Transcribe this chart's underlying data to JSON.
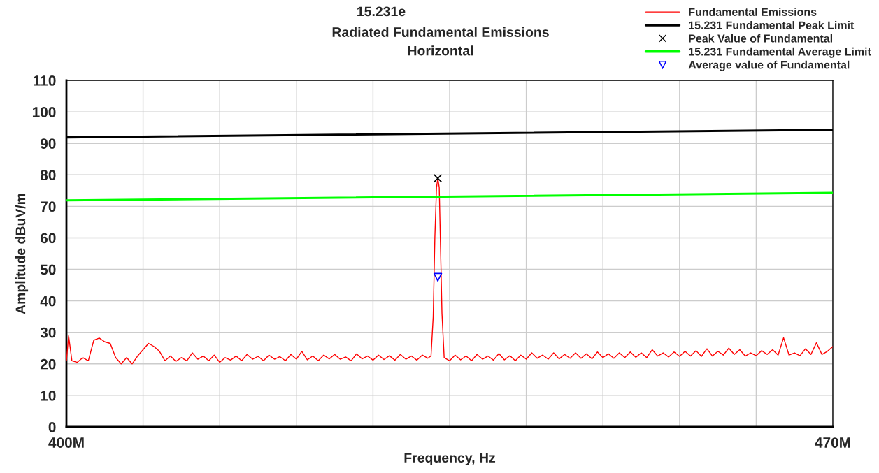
{
  "chart_data": {
    "type": "line",
    "title": "15.231e",
    "subtitle": "Radiated Fundamental Emissions\nHorizontal",
    "xlabel": "Frequency, Hz",
    "ylabel": "Amplitude dBuV/m",
    "xlim": [
      400,
      470
    ],
    "xticks": [
      {
        "value": 400,
        "label": "400M"
      },
      {
        "value": 407,
        "label": null
      },
      {
        "value": 414,
        "label": null
      },
      {
        "value": 421,
        "label": null
      },
      {
        "value": 428,
        "label": null
      },
      {
        "value": 435,
        "label": null
      },
      {
        "value": 442,
        "label": null
      },
      {
        "value": 449,
        "label": null
      },
      {
        "value": 456,
        "label": null
      },
      {
        "value": 463,
        "label": null
      },
      {
        "value": 470,
        "label": "470M"
      }
    ],
    "ylim": [
      0,
      110
    ],
    "yticks": [
      0,
      10,
      20,
      30,
      40,
      50,
      60,
      70,
      80,
      90,
      100,
      110
    ],
    "grid": true,
    "legend": "top right",
    "series": [
      {
        "name": "Fundamental Emissions",
        "color": "#ff0000",
        "x": [
          400,
          400.2,
          400.5,
          401,
          401.5,
          402,
          402.5,
          403,
          403.5,
          404,
          404.5,
          405,
          405.5,
          406,
          406.5,
          407,
          407.5,
          408,
          408.5,
          409,
          409.5,
          410,
          410.5,
          411,
          411.5,
          412,
          412.5,
          413,
          413.5,
          414,
          414.5,
          415,
          415.5,
          416,
          416.5,
          417,
          417.5,
          418,
          418.5,
          419,
          419.5,
          420,
          420.5,
          421,
          421.5,
          422,
          422.5,
          423,
          423.5,
          424,
          424.5,
          425,
          425.5,
          426,
          426.5,
          427,
          427.5,
          428,
          428.5,
          429,
          429.5,
          430,
          430.5,
          431,
          431.5,
          432,
          432.5,
          433,
          433.3,
          433.5,
          433.65,
          433.8,
          433.92,
          434.05,
          434.15,
          434.3,
          434.5,
          435,
          435.5,
          436,
          436.5,
          437,
          437.5,
          438,
          438.5,
          439,
          439.5,
          440,
          440.5,
          441,
          441.5,
          442,
          442.5,
          443,
          443.5,
          444,
          444.5,
          445,
          445.5,
          446,
          446.5,
          447,
          447.5,
          448,
          448.5,
          449,
          449.5,
          450,
          450.5,
          451,
          451.5,
          452,
          452.5,
          453,
          453.5,
          454,
          454.5,
          455,
          455.5,
          456,
          456.5,
          457,
          457.5,
          458,
          458.5,
          459,
          459.5,
          460,
          460.5,
          461,
          461.5,
          462,
          462.5,
          463,
          463.5,
          464,
          464.5,
          465,
          465.5,
          466,
          466.5,
          467,
          467.5,
          468,
          468.5,
          469,
          469.5,
          470
        ],
        "values": [
          21,
          28.9,
          21,
          20.5,
          22,
          21,
          27.5,
          28.2,
          27,
          26.5,
          22,
          20,
          22,
          20,
          22.5,
          24.5,
          26.5,
          25.5,
          24,
          21,
          22.5,
          20.8,
          22,
          21,
          23.5,
          21.5,
          22.5,
          21,
          22.8,
          20.5,
          22,
          21.2,
          22.5,
          21,
          23,
          21.5,
          22.4,
          21,
          22.8,
          21.5,
          22.3,
          21,
          23,
          21.5,
          24,
          21.3,
          22.5,
          21,
          22.8,
          21.6,
          23,
          21.5,
          22.2,
          21,
          23.2,
          21.6,
          22.5,
          21.2,
          22.8,
          21.4,
          22.6,
          21.2,
          23,
          21.5,
          22.5,
          21.2,
          22.8,
          21.8,
          22.5,
          35,
          60,
          76,
          78.9,
          76,
          60,
          36,
          22,
          21,
          22.8,
          21.3,
          22.5,
          21,
          23,
          21.5,
          22.5,
          21.2,
          23.3,
          21.3,
          22.6,
          21,
          22.8,
          21.5,
          23.5,
          21.8,
          22.8,
          21.5,
          23.5,
          21.6,
          23,
          21.8,
          23.5,
          21.8,
          23.2,
          21.6,
          23.8,
          22,
          23.2,
          21.8,
          23.5,
          22,
          23.8,
          22.1,
          23.5,
          22,
          24.5,
          22.5,
          23.5,
          22.2,
          23.8,
          22.4,
          24,
          22.5,
          24.2,
          22.4,
          24.8,
          22.5,
          24,
          22.8,
          25,
          23,
          24.5,
          22.5,
          23.5,
          22.6,
          24.2,
          23,
          24.5,
          22.8,
          28.3,
          22.8,
          23.5,
          22.6,
          24.8,
          23,
          26.7,
          23,
          24,
          25.5
        ]
      },
      {
        "name": "15.231 Fundamental Peak Limit",
        "color": "#000000",
        "x": [
          400,
          470
        ],
        "values": [
          91.9,
          94.3
        ]
      },
      {
        "name": "Peak Value of Fundamental",
        "type": "scatter",
        "marker": "cross",
        "color": "#000000",
        "x": [
          433.92
        ],
        "values": [
          78.9
        ]
      },
      {
        "name": "15.231 Fundamental Average Limit",
        "color": "#00ff00",
        "x": [
          400,
          470
        ],
        "values": [
          71.9,
          74.3
        ]
      },
      {
        "name": "Average value of Fundamental",
        "type": "scatter",
        "marker": "triangle",
        "color": "#0000ff",
        "x": [
          433.92
        ],
        "values": [
          47.5
        ]
      }
    ]
  }
}
